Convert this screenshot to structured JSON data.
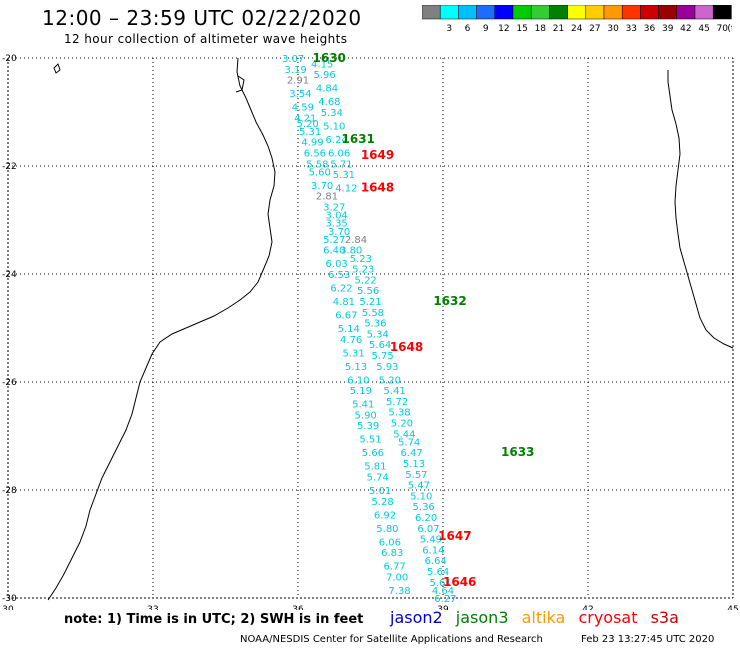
{
  "header": {
    "title": "12:00 – 23:59 UTC 02/22/2020",
    "subtitle": "12 hour collection of altimeter wave heights"
  },
  "legend": {
    "unit": "(ft)",
    "bins": [
      {
        "label": "",
        "color": "#808080"
      },
      {
        "label": "3",
        "color": "#00ffff"
      },
      {
        "label": "6",
        "color": "#00bfff"
      },
      {
        "label": "9",
        "color": "#1e6cff"
      },
      {
        "label": "12",
        "color": "#0000ff"
      },
      {
        "label": "15",
        "color": "#00cc00"
      },
      {
        "label": "18",
        "color": "#33cc33"
      },
      {
        "label": "21",
        "color": "#008000"
      },
      {
        "label": "24",
        "color": "#ffff00"
      },
      {
        "label": "27",
        "color": "#ffcc00"
      },
      {
        "label": "30",
        "color": "#ff9900"
      },
      {
        "label": "33",
        "color": "#ff3300"
      },
      {
        "label": "36",
        "color": "#cc0000"
      },
      {
        "label": "39",
        "color": "#990000"
      },
      {
        "label": "42",
        "color": "#990099"
      },
      {
        "label": "45",
        "color": "#cc66cc"
      },
      {
        "label": "70",
        "color": "#000000"
      }
    ]
  },
  "axes": {
    "lon_ticks": [
      "30",
      "33",
      "36",
      "39",
      "42",
      "45"
    ],
    "lat_ticks": [
      "-20",
      "-22",
      "-24",
      "-26",
      "-28",
      "-30"
    ]
  },
  "tracks": [
    {
      "label": "1630",
      "color": "#008000",
      "lon": 36.3,
      "lat": -20.0
    },
    {
      "label": "1631",
      "color": "#008000",
      "lon": 36.9,
      "lat": -21.5
    },
    {
      "label": "1649",
      "color": "#ff0000",
      "lon": 37.3,
      "lat": -21.8
    },
    {
      "label": "1648",
      "color": "#ff0000",
      "lon": 37.3,
      "lat": -22.4
    },
    {
      "label": "1632",
      "color": "#008000",
      "lon": 38.8,
      "lat": -24.5
    },
    {
      "label": "1648",
      "color": "#ff0000",
      "lon": 37.9,
      "lat": -25.35
    },
    {
      "label": "1633",
      "color": "#008000",
      "lon": 40.2,
      "lat": -27.3
    },
    {
      "label": "1647",
      "color": "#ff0000",
      "lon": 38.9,
      "lat": -28.85
    },
    {
      "label": "1646",
      "color": "#ff0000",
      "lon": 39.0,
      "lat": -29.7
    }
  ],
  "values": [
    {
      "v": "3.07",
      "c": "#00ccdd",
      "lon": 35.9,
      "lat": -20.0
    },
    {
      "v": "4.15",
      "c": "#00ccdd",
      "lon": 36.5,
      "lat": -20.1
    },
    {
      "v": "3.19",
      "c": "#00ccdd",
      "lon": 35.95,
      "lat": -20.2
    },
    {
      "v": "5.96",
      "c": "#00ccdd",
      "lon": 36.55,
      "lat": -20.3
    },
    {
      "v": "2.91",
      "c": "#808080",
      "lon": 36.0,
      "lat": -20.4
    },
    {
      "v": "4.84",
      "c": "#00ccdd",
      "lon": 36.6,
      "lat": -20.55
    },
    {
      "v": "3.54",
      "c": "#00ccdd",
      "lon": 36.05,
      "lat": -20.65
    },
    {
      "v": "4.68",
      "c": "#00ccdd",
      "lon": 36.65,
      "lat": -20.8
    },
    {
      "v": "4.59",
      "c": "#00ccdd",
      "lon": 36.1,
      "lat": -20.9
    },
    {
      "v": "5.34",
      "c": "#00ccdd",
      "lon": 36.7,
      "lat": -21.0
    },
    {
      "v": "4.21",
      "c": "#00ccdd",
      "lon": 36.15,
      "lat": -21.1
    },
    {
      "v": "5.20",
      "c": "#00ccdd",
      "lon": 36.2,
      "lat": -21.2
    },
    {
      "v": "5.10",
      "c": "#00ccdd",
      "lon": 36.75,
      "lat": -21.25
    },
    {
      "v": "5.31",
      "c": "#00ccdd",
      "lon": 36.25,
      "lat": -21.35
    },
    {
      "v": "4.99",
      "c": "#00ccdd",
      "lon": 36.3,
      "lat": -21.55
    },
    {
      "v": "6.24",
      "c": "#00ccdd",
      "lon": 36.8,
      "lat": -21.5
    },
    {
      "v": "6.56",
      "c": "#00ccdd",
      "lon": 36.35,
      "lat": -21.75
    },
    {
      "v": "6.06",
      "c": "#00ccdd",
      "lon": 36.85,
      "lat": -21.75
    },
    {
      "v": "5.58",
      "c": "#00ccdd",
      "lon": 36.4,
      "lat": -21.95
    },
    {
      "v": "5.71",
      "c": "#00ccdd",
      "lon": 36.9,
      "lat": -21.95
    },
    {
      "v": "5.60",
      "c": "#00ccdd",
      "lon": 36.45,
      "lat": -22.1
    },
    {
      "v": "5.31",
      "c": "#00ccdd",
      "lon": 36.95,
      "lat": -22.15
    },
    {
      "v": "3.70",
      "c": "#00ccdd",
      "lon": 36.5,
      "lat": -22.35
    },
    {
      "v": "4.12",
      "c": "#00ccdd",
      "lon": 37.0,
      "lat": -22.4
    },
    {
      "v": "2.81",
      "c": "#808080",
      "lon": 36.6,
      "lat": -22.55
    },
    {
      "v": "3.27",
      "c": "#00ccdd",
      "lon": 36.75,
      "lat": -22.75
    },
    {
      "v": "3.04",
      "c": "#00ccdd",
      "lon": 36.8,
      "lat": -22.9
    },
    {
      "v": "3.35",
      "c": "#00ccdd",
      "lon": 36.8,
      "lat": -23.05
    },
    {
      "v": "3.70",
      "c": "#00ccdd",
      "lon": 36.85,
      "lat": -23.2
    },
    {
      "v": "5.27",
      "c": "#00ccdd",
      "lon": 36.75,
      "lat": -23.35
    },
    {
      "v": "2.84",
      "c": "#808080",
      "lon": 37.2,
      "lat": -23.35
    },
    {
      "v": "6.40",
      "c": "#00ccdd",
      "lon": 36.75,
      "lat": -23.55
    },
    {
      "v": "3.80",
      "c": "#00ccdd",
      "lon": 37.1,
      "lat": -23.55
    },
    {
      "v": "6.03",
      "c": "#00ccdd",
      "lon": 36.8,
      "lat": -23.8
    },
    {
      "v": "5.23",
      "c": "#00ccdd",
      "lon": 37.3,
      "lat": -23.7
    },
    {
      "v": "6.53",
      "c": "#00ccdd",
      "lon": 36.85,
      "lat": -24.0
    },
    {
      "v": "5.23",
      "c": "#00ccdd",
      "lon": 37.35,
      "lat": -23.9
    },
    {
      "v": "5.22",
      "c": "#00ccdd",
      "lon": 37.4,
      "lat": -24.1
    },
    {
      "v": "6.22",
      "c": "#00ccdd",
      "lon": 36.9,
      "lat": -24.25
    },
    {
      "v": "5.56",
      "c": "#00ccdd",
      "lon": 37.45,
      "lat": -24.3
    },
    {
      "v": "4.81",
      "c": "#00ccdd",
      "lon": 36.95,
      "lat": -24.5
    },
    {
      "v": "5.21",
      "c": "#00ccdd",
      "lon": 37.5,
      "lat": -24.5
    },
    {
      "v": "6.67",
      "c": "#00ccdd",
      "lon": 37.0,
      "lat": -24.75
    },
    {
      "v": "5.58",
      "c": "#00ccdd",
      "lon": 37.55,
      "lat": -24.7
    },
    {
      "v": "5.14",
      "c": "#00ccdd",
      "lon": 37.05,
      "lat": -25.0
    },
    {
      "v": "5.36",
      "c": "#00ccdd",
      "lon": 37.6,
      "lat": -24.9
    },
    {
      "v": "5.34",
      "c": "#00ccdd",
      "lon": 37.65,
      "lat": -25.1
    },
    {
      "v": "4.76",
      "c": "#00ccdd",
      "lon": 37.1,
      "lat": -25.2
    },
    {
      "v": "5.64",
      "c": "#00ccdd",
      "lon": 37.7,
      "lat": -25.3
    },
    {
      "v": "5.31",
      "c": "#00ccdd",
      "lon": 37.15,
      "lat": -25.45
    },
    {
      "v": "5.75",
      "c": "#00ccdd",
      "lon": 37.75,
      "lat": -25.5
    },
    {
      "v": "5.13",
      "c": "#00ccdd",
      "lon": 37.2,
      "lat": -25.7
    },
    {
      "v": "5.93",
      "c": "#00ccdd",
      "lon": 37.85,
      "lat": -25.7
    },
    {
      "v": "6.10",
      "c": "#00ccdd",
      "lon": 37.25,
      "lat": -25.95
    },
    {
      "v": "5.20",
      "c": "#00ccdd",
      "lon": 37.9,
      "lat": -25.95
    },
    {
      "v": "5.19",
      "c": "#00ccdd",
      "lon": 37.3,
      "lat": -26.15
    },
    {
      "v": "5.41",
      "c": "#00ccdd",
      "lon": 38.0,
      "lat": -26.15
    },
    {
      "v": "5.72",
      "c": "#00ccdd",
      "lon": 38.05,
      "lat": -26.35
    },
    {
      "v": "5.41",
      "c": "#00ccdd",
      "lon": 37.35,
      "lat": -26.4
    },
    {
      "v": "5.38",
      "c": "#00ccdd",
      "lon": 38.1,
      "lat": -26.55
    },
    {
      "v": "5.90",
      "c": "#00ccdd",
      "lon": 37.4,
      "lat": -26.6
    },
    {
      "v": "5.20",
      "c": "#00ccdd",
      "lon": 38.15,
      "lat": -26.75
    },
    {
      "v": "5.39",
      "c": "#00ccdd",
      "lon": 37.45,
      "lat": -26.8
    },
    {
      "v": "5.44",
      "c": "#00ccdd",
      "lon": 38.2,
      "lat": -26.95
    },
    {
      "v": "5.51",
      "c": "#00ccdd",
      "lon": 37.5,
      "lat": -27.05
    },
    {
      "v": "5.74",
      "c": "#00ccdd",
      "lon": 38.3,
      "lat": -27.1
    },
    {
      "v": "6.47",
      "c": "#00ccdd",
      "lon": 38.35,
      "lat": -27.3
    },
    {
      "v": "5.66",
      "c": "#00ccdd",
      "lon": 37.55,
      "lat": -27.3
    },
    {
      "v": "5.13",
      "c": "#00ccdd",
      "lon": 38.4,
      "lat": -27.5
    },
    {
      "v": "5.81",
      "c": "#00ccdd",
      "lon": 37.6,
      "lat": -27.55
    },
    {
      "v": "5.57",
      "c": "#00ccdd",
      "lon": 38.45,
      "lat": -27.7
    },
    {
      "v": "5.74",
      "c": "#00ccdd",
      "lon": 37.65,
      "lat": -27.75
    },
    {
      "v": "5.47",
      "c": "#00ccdd",
      "lon": 38.5,
      "lat": -27.9
    },
    {
      "v": "5.01",
      "c": "#00ccdd",
      "lon": 37.7,
      "lat": -28.0
    },
    {
      "v": "5.10",
      "c": "#00ccdd",
      "lon": 38.55,
      "lat": -28.1
    },
    {
      "v": "5.28",
      "c": "#00ccdd",
      "lon": 37.75,
      "lat": -28.2
    },
    {
      "v": "5.36",
      "c": "#00ccdd",
      "lon": 38.6,
      "lat": -28.3
    },
    {
      "v": "6.92",
      "c": "#00ccdd",
      "lon": 37.8,
      "lat": -28.45
    },
    {
      "v": "6.20",
      "c": "#00ccdd",
      "lon": 38.65,
      "lat": -28.5
    },
    {
      "v": "5.80",
      "c": "#00ccdd",
      "lon": 37.85,
      "lat": -28.7
    },
    {
      "v": "6.07",
      "c": "#00ccdd",
      "lon": 38.7,
      "lat": -28.7
    },
    {
      "v": "5.49",
      "c": "#00ccdd",
      "lon": 38.75,
      "lat": -28.9
    },
    {
      "v": "6.06",
      "c": "#00ccdd",
      "lon": 37.9,
      "lat": -28.95
    },
    {
      "v": "6.14",
      "c": "#00ccdd",
      "lon": 38.8,
      "lat": -29.1
    },
    {
      "v": "6.83",
      "c": "#00ccdd",
      "lon": 37.95,
      "lat": -29.15
    },
    {
      "v": "6.64",
      "c": "#00ccdd",
      "lon": 38.85,
      "lat": -29.3
    },
    {
      "v": "6.77",
      "c": "#00ccdd",
      "lon": 38.0,
      "lat": -29.4
    },
    {
      "v": "5.64",
      "c": "#00ccdd",
      "lon": 38.9,
      "lat": -29.5
    },
    {
      "v": "7.00",
      "c": "#00ccdd",
      "lon": 38.05,
      "lat": -29.6
    },
    {
      "v": "5.61",
      "c": "#00ccdd",
      "lon": 38.95,
      "lat": -29.7
    },
    {
      "v": "7.38",
      "c": "#00ccdd",
      "lon": 38.1,
      "lat": -29.85
    },
    {
      "v": "4.64",
      "c": "#00ccdd",
      "lon": 39.0,
      "lat": -29.85
    },
    {
      "v": "6.27",
      "c": "#00ccdd",
      "lon": 39.05,
      "lat": -30.0
    }
  ],
  "footer": {
    "note": "note: 1) Time is in UTC; 2) SWH is in feet",
    "satellites": [
      {
        "name": "jason2",
        "color": "#0000cc"
      },
      {
        "name": "jason3",
        "color": "#008000"
      },
      {
        "name": "altika",
        "color": "#ff9900"
      },
      {
        "name": "cryosat",
        "color": "#ff0000"
      },
      {
        "name": "s3a",
        "color": "#cc0000"
      }
    ],
    "credit": "NOAA/NESDIS Center for Satellite Applications and Research",
    "timestamp": "Feb 23 13:27:45 UTC 2020"
  }
}
